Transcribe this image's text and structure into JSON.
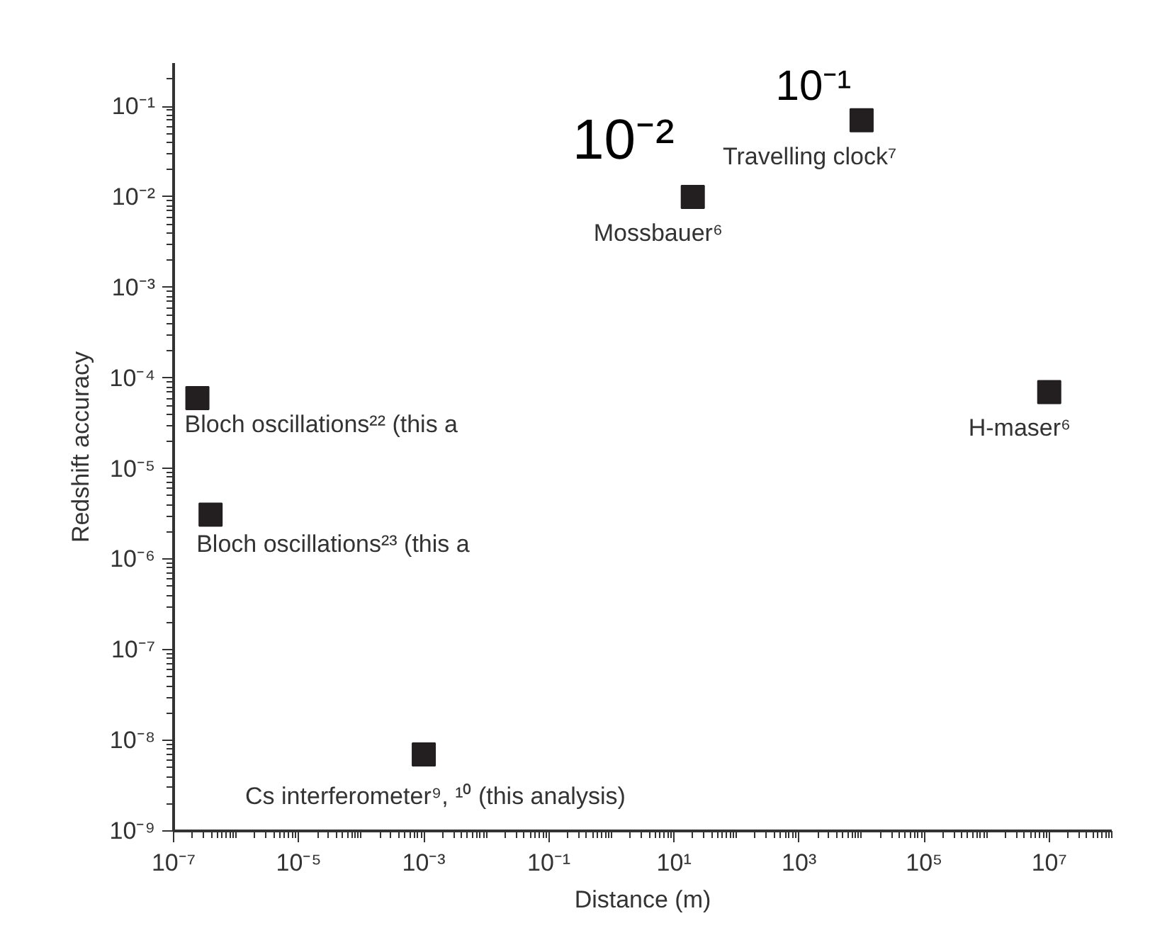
{
  "chart_data": {
    "type": "scatter",
    "xlabel": "Distance (m)",
    "ylabel": "Redshift accuracy",
    "log": "xy",
    "marker": "square",
    "xlim": [
      1e-07,
      100000000.0
    ],
    "ylim": [
      1e-09,
      0.3
    ],
    "xticks": [
      {
        "value": 1e-07,
        "label": "10⁻⁷"
      },
      {
        "value": 1e-05,
        "label": "10⁻⁵"
      },
      {
        "value": 0.001,
        "label": "10⁻³"
      },
      {
        "value": 0.1,
        "label": "10⁻¹"
      },
      {
        "value": 10,
        "label": "10¹"
      },
      {
        "value": 1000,
        "label": "10³"
      },
      {
        "value": 100000,
        "label": "10⁵"
      },
      {
        "value": 10000000,
        "label": "10⁷"
      }
    ],
    "yticks": [
      {
        "value": 1e-09,
        "label": "10⁻⁹"
      },
      {
        "value": 1e-08,
        "label": "10⁻⁸"
      },
      {
        "value": 1e-07,
        "label": "10⁻⁷"
      },
      {
        "value": 1e-06,
        "label": "10⁻⁶"
      },
      {
        "value": 1e-05,
        "label": "10⁻⁵"
      },
      {
        "value": 0.0001,
        "label": "10⁻⁴"
      },
      {
        "value": 0.001,
        "label": "10⁻³"
      },
      {
        "value": 0.01,
        "label": "10⁻²"
      },
      {
        "value": 0.1,
        "label": "10⁻¹"
      }
    ],
    "series": [
      {
        "color": "#231f20",
        "x": [
          2.4e-07,
          3.9e-07,
          0.001,
          20,
          10000,
          10000000
        ],
        "values": [
          6e-05,
          3.1e-06,
          7e-09,
          0.01,
          0.07,
          7e-05
        ]
      }
    ],
    "annotations": [
      {
        "text": "Bloch oscillations²² (this a",
        "x": 2.4e-07,
        "y": 6e-05
      },
      {
        "text": "Bloch oscillations²³ (this a",
        "x": 3.9e-07,
        "y": 3.1e-06
      },
      {
        "text": "Cs interferometer⁹, ¹⁰ (this analysis)",
        "x": 0.001,
        "y": 7e-09
      },
      {
        "text": "Mossbauer⁶",
        "x": 20,
        "y": 0.01
      },
      {
        "text": "Travelling clock⁷",
        "x": 10000,
        "y": 0.07
      },
      {
        "text": "H-maser⁶",
        "x": 10000000,
        "y": 7e-05
      },
      {
        "text": "10⁻²",
        "x": 20,
        "y": 0.01
      },
      {
        "text": "10⁻¹",
        "x": 10000,
        "y": 0.07
      }
    ]
  }
}
